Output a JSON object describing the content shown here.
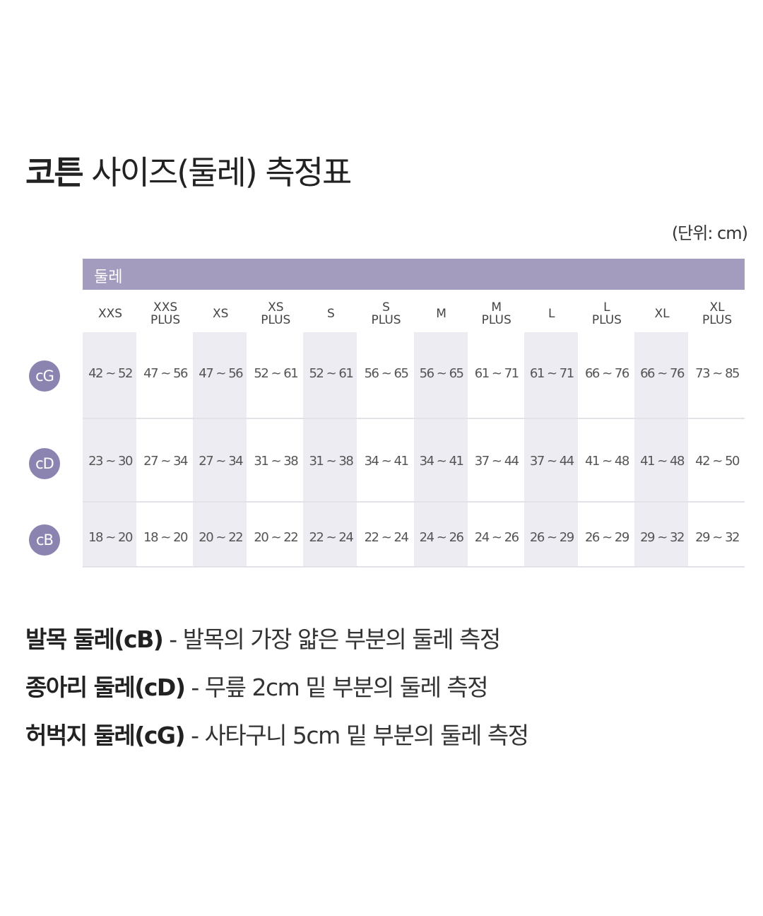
{
  "title": {
    "bold": "코튼",
    "regular": " 사이즈(둘레) 측정표"
  },
  "unit_note": "(단위: cm)",
  "table": {
    "header": "둘레",
    "sizes": [
      "XXS",
      "XXS\nPLUS",
      "XS",
      "XS\nPLUS",
      "S",
      "S\nPLUS",
      "M",
      "M\nPLUS",
      "L",
      "L\nPLUS",
      "XL",
      "XL\nPLUS"
    ],
    "rows": [
      {
        "badge": "cG",
        "values": [
          "42 ~ 52",
          "47 ~ 56",
          "47 ~ 56",
          "52 ~ 61",
          "52 ~ 61",
          "56 ~ 65",
          "56 ~ 65",
          "61 ~ 71",
          "61 ~ 71",
          "66 ~ 76",
          "66 ~ 76",
          "73 ~ 85"
        ]
      },
      {
        "badge": "cD",
        "values": [
          "23 ~ 30",
          "27 ~ 34",
          "27 ~ 34",
          "31 ~ 38",
          "31 ~ 38",
          "34 ~ 41",
          "34 ~ 41",
          "37 ~ 44",
          "37 ~ 44",
          "41 ~ 48",
          "41 ~ 48",
          "42 ~ 50"
        ]
      },
      {
        "badge": "cB",
        "values": [
          "18 ~ 20",
          "18 ~ 20",
          "20 ~ 22",
          "20 ~ 22",
          "22 ~ 24",
          "22 ~ 24",
          "24 ~ 26",
          "24 ~ 26",
          "26 ~ 29",
          "26 ~ 29",
          "29 ~ 32",
          "29 ~ 32"
        ]
      }
    ]
  },
  "descriptions": [
    {
      "term": "발목 둘레(cB)",
      "text": " - 발목의 가장 얇은 부분의 둘레 측정"
    },
    {
      "term": "종아리 둘레(cD)",
      "text": " - 무릎 2cm 밑 부분의 둘레 측정"
    },
    {
      "term": "허벅지 둘레(cG)",
      "text": " - 사타구니 5cm 밑 부분의 둘레 측정"
    }
  ],
  "colors": {
    "header_bar": "#a39cbf",
    "badge": "#8b84b0",
    "shaded_column": "#ececf2"
  }
}
